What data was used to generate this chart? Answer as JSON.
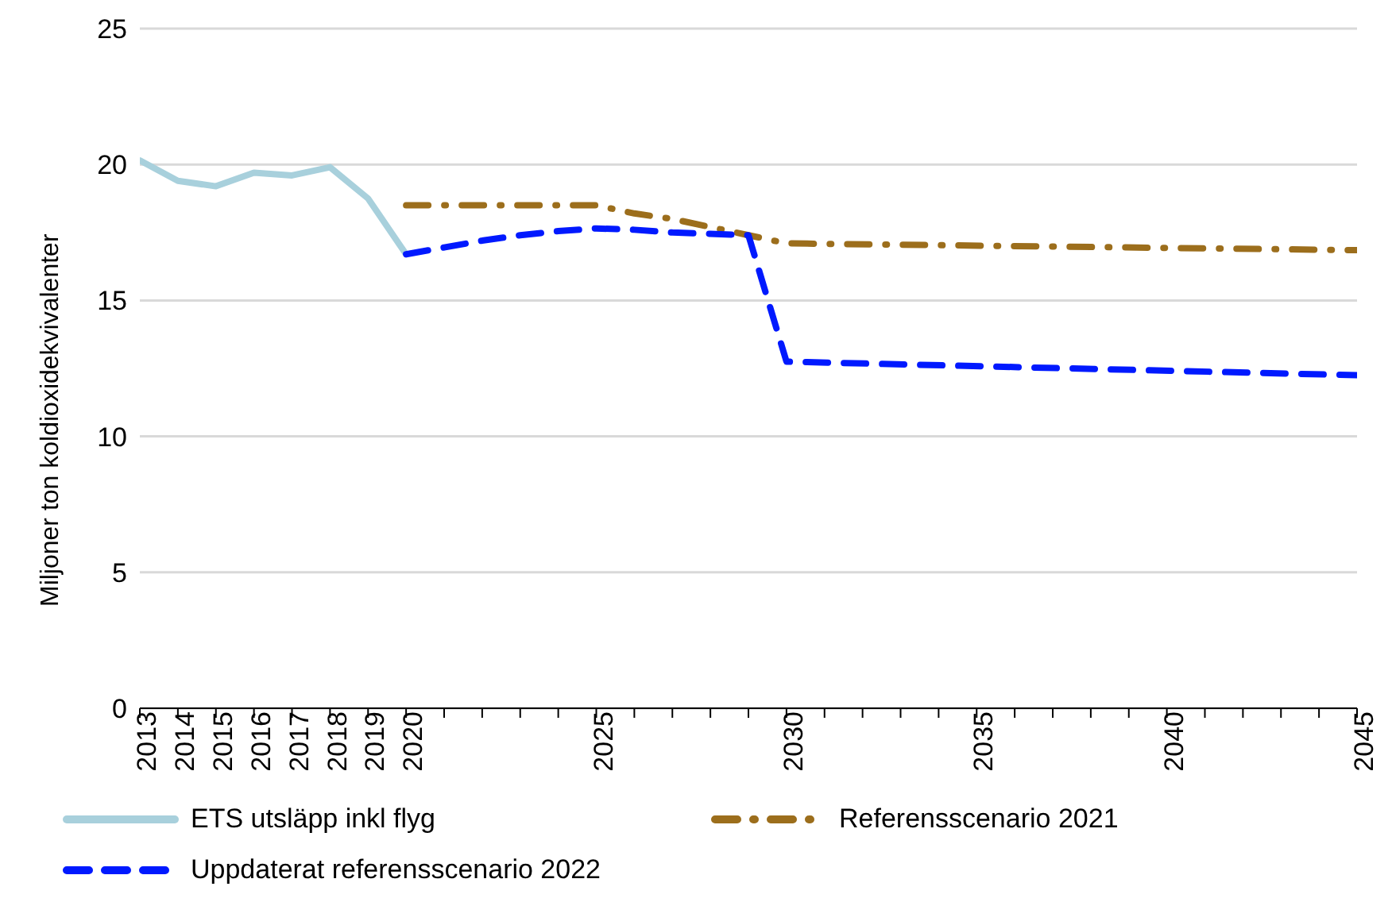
{
  "chart_data": {
    "type": "line",
    "ylabel": "Miljoner ton koldioxidekvivalenter",
    "xlim": [
      2013,
      2045
    ],
    "xticks": [
      2013,
      2014,
      2015,
      2016,
      2017,
      2018,
      2019,
      2020,
      {
        "value": 2021,
        "label": null
      },
      {
        "value": 2022,
        "label": null
      },
      {
        "value": 2023,
        "label": null
      },
      {
        "value": 2024,
        "label": null
      },
      2025,
      {
        "value": 2026,
        "label": null
      },
      {
        "value": 2027,
        "label": null
      },
      {
        "value": 2028,
        "label": null
      },
      {
        "value": 2029,
        "label": null
      },
      2030,
      {
        "value": 2031,
        "label": null
      },
      {
        "value": 2032,
        "label": null
      },
      {
        "value": 2033,
        "label": null
      },
      {
        "value": 2034,
        "label": null
      },
      2035,
      {
        "value": 2036,
        "label": null
      },
      {
        "value": 2037,
        "label": null
      },
      {
        "value": 2038,
        "label": null
      },
      {
        "value": 2039,
        "label": null
      },
      2040,
      {
        "value": 2041,
        "label": null
      },
      {
        "value": 2042,
        "label": null
      },
      {
        "value": 2043,
        "label": null
      },
      {
        "value": 2044,
        "label": null
      },
      2045
    ],
    "ylim": [
      0,
      25
    ],
    "yticks": [
      0,
      5,
      10,
      15,
      20,
      25
    ],
    "grid": "y",
    "legend": "bottom",
    "marker": "none",
    "series": [
      {
        "name": "ETS utsläpp inkl flyg",
        "color": "#a8d0dc",
        "line_style": "solid",
        "x": [
          2013,
          2014,
          2015,
          2016,
          2017,
          2018,
          2019,
          2020
        ],
        "values": [
          20.15,
          19.4,
          19.2,
          19.7,
          19.6,
          19.9,
          18.75,
          16.7
        ]
      },
      {
        "name": "Referensscenario 2021",
        "color": "#9c6e1c",
        "line_style": "dashdot",
        "x": [
          2020,
          2025,
          2026,
          2027,
          2028,
          2029,
          2030,
          2045
        ],
        "values": [
          18.5,
          18.5,
          18.2,
          18.0,
          17.7,
          17.4,
          17.1,
          16.85
        ]
      },
      {
        "name": "Uppdaterat referensscenario 2022",
        "color": "#0019ff",
        "line_style": "dashed",
        "x": [
          2020,
          2021,
          2022,
          2023,
          2024,
          2025,
          2026,
          2027,
          2028,
          2029,
          2030,
          2045
        ],
        "values": [
          16.7,
          16.95,
          17.2,
          17.4,
          17.55,
          17.65,
          17.6,
          17.5,
          17.45,
          17.4,
          12.75,
          12.25
        ]
      }
    ]
  }
}
